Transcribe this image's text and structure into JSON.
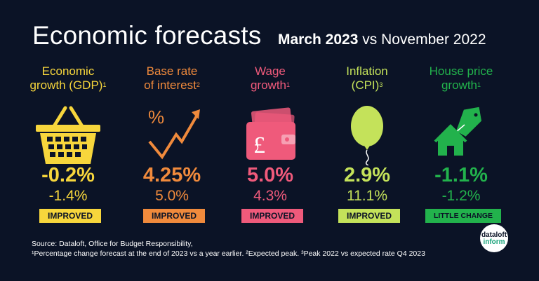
{
  "header": {
    "title": "Economic forecasts",
    "subtitle_bold": "March 2023",
    "subtitle_rest": " vs November 2022"
  },
  "indicators": [
    {
      "label_line1": "Economic",
      "label_line2": "growth (GDP)",
      "note": "1",
      "value": "-0.2%",
      "previous": "-1.4%",
      "status": "IMPROVED",
      "color": "#f7d63c",
      "icon": "basket-icon"
    },
    {
      "label_line1": "Base rate",
      "label_line2": "of interest",
      "note": "2",
      "value": "4.25%",
      "previous": "5.0%",
      "status": "IMPROVED",
      "color": "#f08a3c",
      "icon": "percent-trend-icon"
    },
    {
      "label_line1": "Wage",
      "label_line2": "growth",
      "note": "1",
      "value": "5.0%",
      "previous": "4.3%",
      "status": "IMPROVED",
      "color": "#ef5a7b",
      "icon": "wallet-pound-icon"
    },
    {
      "label_line1": "Inflation",
      "label_line2": "(CPI)",
      "note": "3",
      "value": "2.9%",
      "previous": "11.1%",
      "status": "IMPROVED",
      "color": "#c4e25a",
      "icon": "balloon-icon"
    },
    {
      "label_line1": "House price",
      "label_line2": "growth",
      "note": "1",
      "value": "-1.1%",
      "previous": "-1.2%",
      "status": "LITTLE CHANGE",
      "color": "#22b24c",
      "icon": "house-tag-icon"
    }
  ],
  "footer": {
    "source": "Source: Dataloft, Office for Budget Responsibility,",
    "notes": "¹Percentage change forecast at the end of 2023 vs a year earlier. ²Expected peak. ³Peak 2022 vs expected rate Q4 2023"
  },
  "logo": {
    "line1": "dataloft",
    "line2": "inform"
  }
}
